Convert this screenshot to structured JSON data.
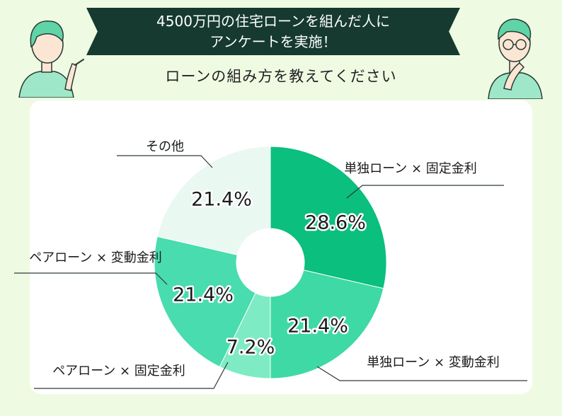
{
  "header": {
    "banner_line1": "4500万円の住宅ローンを組んだ人に",
    "banner_line2": "アンケートを実施！",
    "question": "ローンの組み方を教えてください"
  },
  "colors": {
    "background": "#eefbe2",
    "banner": "#163a2f"
  },
  "chart_data": {
    "type": "pie",
    "title": "",
    "categories": [
      "単独ローン × 固定金利",
      "単独ローン × 変動金利",
      "ペアローン × 固定金利",
      "ペアローン × 変動金利",
      "その他"
    ],
    "values": [
      28.6,
      21.4,
      7.2,
      21.4,
      21.4
    ],
    "value_labels": [
      "28.6%",
      "21.4%",
      "7.2%",
      "21.4%",
      "21.4%"
    ],
    "colors": [
      "#0bbf7e",
      "#3ed9a4",
      "#7eebc4",
      "#48dcae",
      "#e9f8f1"
    ],
    "donut": true,
    "legend": "none"
  }
}
